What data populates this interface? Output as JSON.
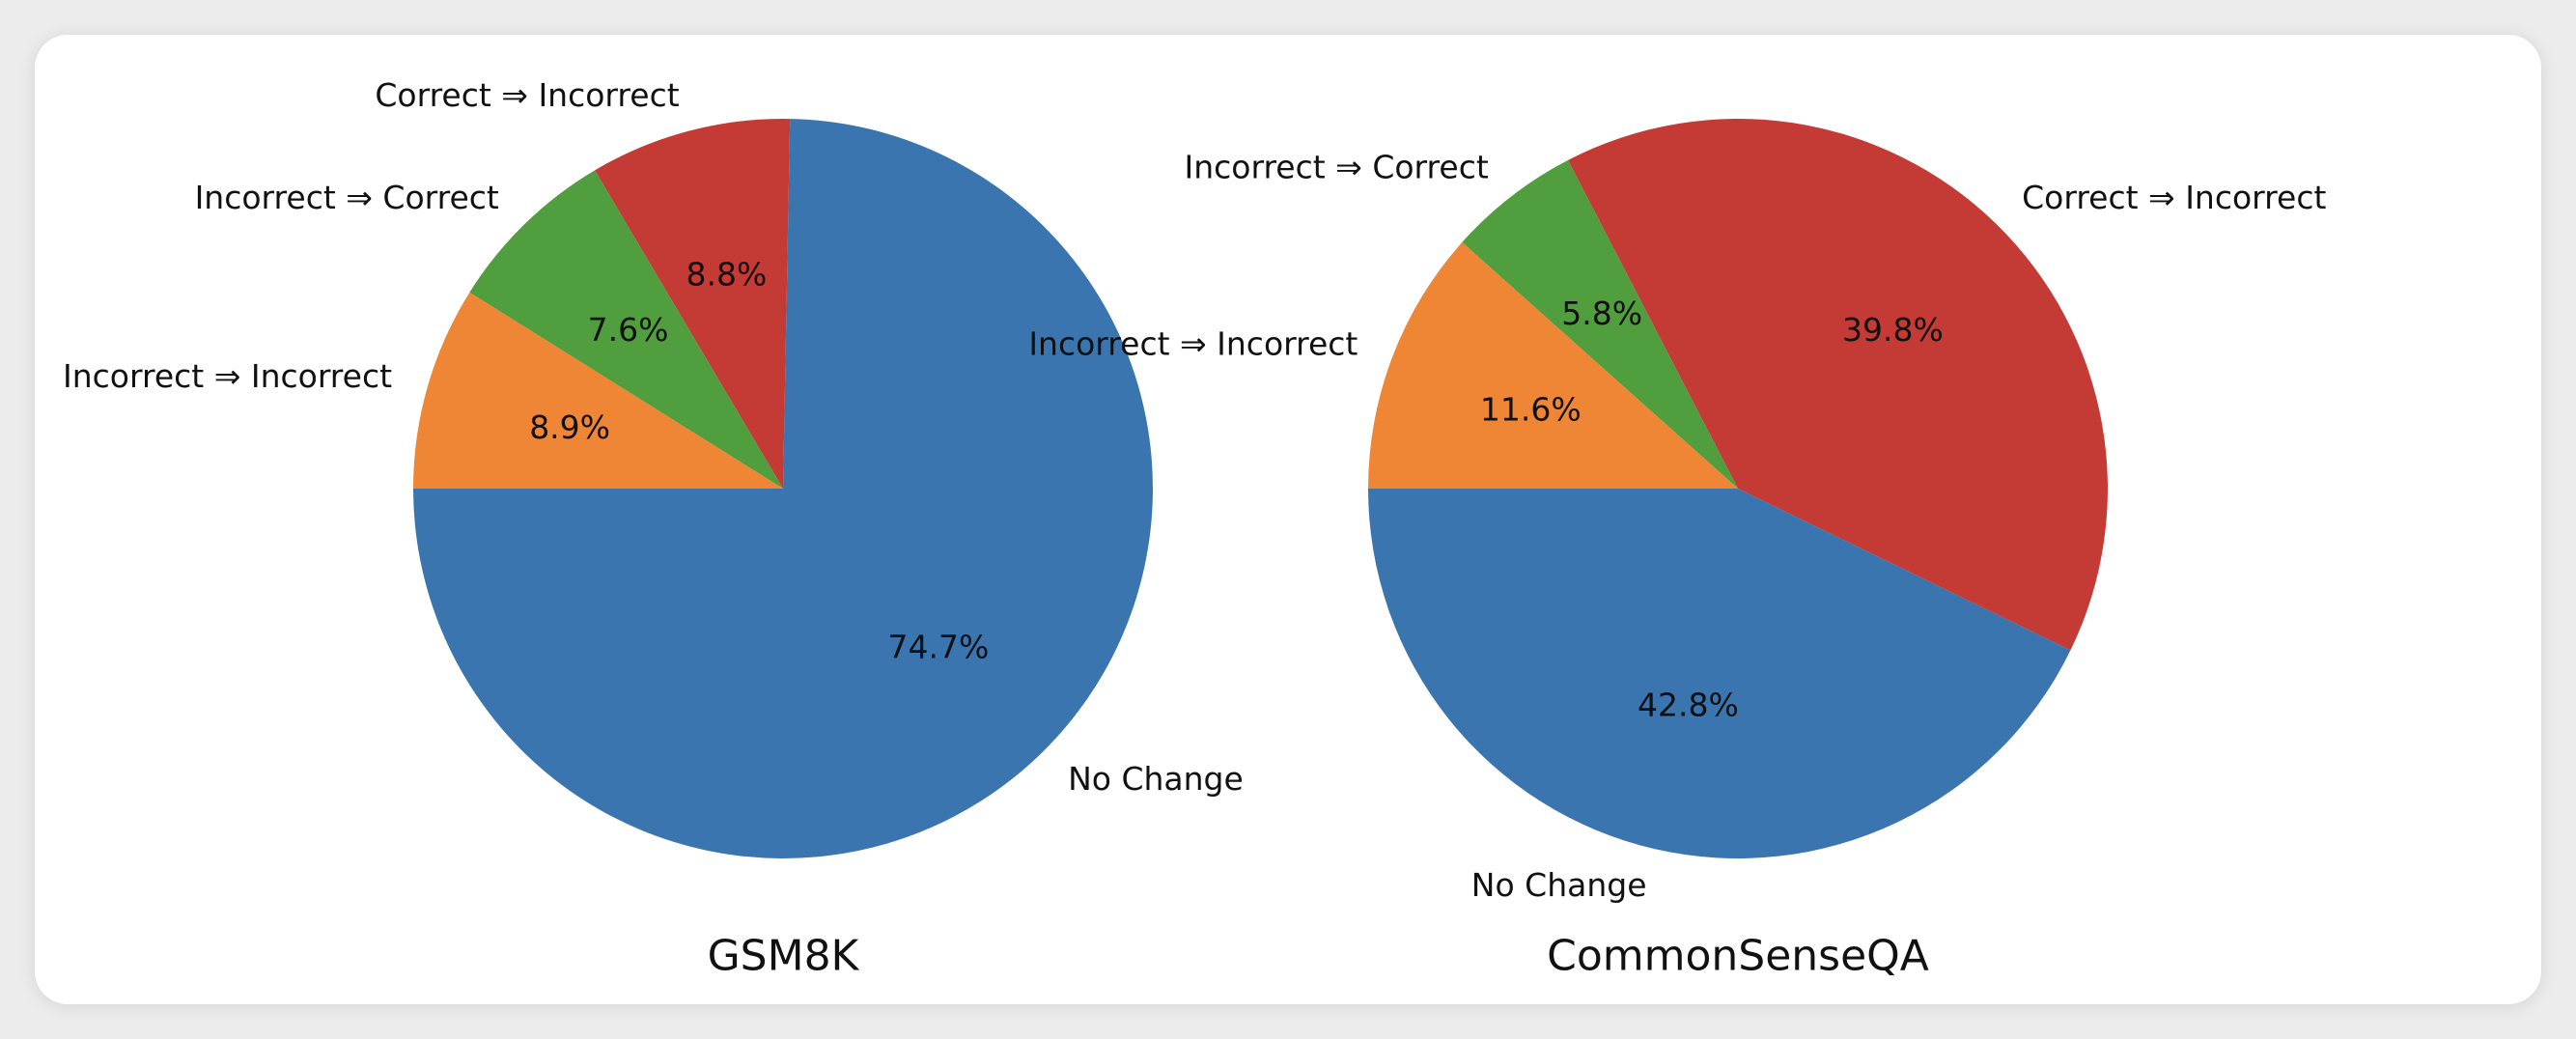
{
  "chart_data": [
    {
      "type": "pie",
      "title": "GSM8K",
      "slices": [
        {
          "label": "No Change",
          "value": 74.7,
          "pct_label": "74.7%",
          "color": "#3b75af"
        },
        {
          "label": "Correct ⇒ Incorrect",
          "value": 8.8,
          "pct_label": "8.8%",
          "color": "#c43b35"
        },
        {
          "label": "Incorrect ⇒ Correct",
          "value": 7.6,
          "pct_label": "7.6%",
          "color": "#519e3e"
        },
        {
          "label": "Incorrect ⇒ Incorrect",
          "value": 8.9,
          "pct_label": "8.9%",
          "color": "#ef8636"
        }
      ]
    },
    {
      "type": "pie",
      "title": "CommonSenseQA",
      "slices": [
        {
          "label": "No Change",
          "value": 42.8,
          "pct_label": "42.8%",
          "color": "#3b75af"
        },
        {
          "label": "Correct ⇒ Incorrect",
          "value": 39.8,
          "pct_label": "39.8%",
          "color": "#c43b35"
        },
        {
          "label": "Incorrect ⇒ Correct",
          "value": 5.8,
          "pct_label": "5.8%",
          "color": "#519e3e"
        },
        {
          "label": "Incorrect ⇒ Incorrect",
          "value": 11.6,
          "pct_label": "11.6%",
          "color": "#ef8636"
        }
      ]
    }
  ]
}
